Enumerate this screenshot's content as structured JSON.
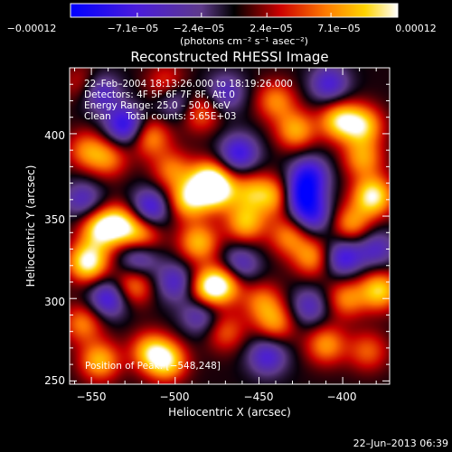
{
  "chart_data": {
    "type": "heatmap",
    "title": "Reconstructed RHESSI Image",
    "xlabel": "Heliocentric X (arcsec)",
    "ylabel": "Heliocentric Y (arcsec)",
    "xlim": [
      -563,
      -372
    ],
    "ylim": [
      248,
      440
    ],
    "x_ticks": [
      -550,
      -500,
      -450,
      -400
    ],
    "y_ticks": [
      250,
      300,
      350,
      400
    ],
    "x_tick_labels": [
      "−550",
      "−500",
      "−450",
      "−400"
    ],
    "y_tick_labels": [
      "250",
      "300",
      "350",
      "400"
    ],
    "colorbar": {
      "range": [
        -0.00012,
        0.00012
      ],
      "colormap": "blue-purple-black-red-yellow-white",
      "ticks": [
        -0.00012,
        -7.1e-05,
        -2.4e-05,
        2.4e-05,
        7.1e-05,
        0.00012
      ],
      "tick_labels": [
        "−0.00012",
        "−7.1e−05",
        "−2.4e−05",
        "2.4e−05",
        "7.1e−05",
        "0.00012"
      ],
      "unit_label": "(photons cm⁻² s⁻¹ asec⁻²)"
    },
    "annotations": [
      "22–Feb–2004 18:13:26.000 to 18:19:26.000",
      "Detectors: 4F 5F 6F 7F 8F, Att 0",
      "Energy Range: 25.0 – 50.0 keV",
      "Clean     Total counts: 5.65E+03"
    ],
    "footer_note": "Position of Peak: [−548,248]",
    "blobs": [
      {
        "x": -552,
        "y": 322,
        "v": 1.0
      },
      {
        "x": -545,
        "y": 342,
        "v": 0.8
      },
      {
        "x": -533,
        "y": 345,
        "v": 0.8
      },
      {
        "x": -525,
        "y": 308,
        "v": 0.6
      },
      {
        "x": -520,
        "y": 338,
        "v": 0.65
      },
      {
        "x": -553,
        "y": 390,
        "v": 0.5
      },
      {
        "x": -540,
        "y": 385,
        "v": 0.5
      },
      {
        "x": -515,
        "y": 398,
        "v": 0.6
      },
      {
        "x": -502,
        "y": 378,
        "v": 0.5
      },
      {
        "x": -485,
        "y": 413,
        "v": 0.5
      },
      {
        "x": -492,
        "y": 360,
        "v": 0.8
      },
      {
        "x": -486,
        "y": 334,
        "v": 0.7
      },
      {
        "x": -475,
        "y": 365,
        "v": 0.75
      },
      {
        "x": -480,
        "y": 372,
        "v": 0.85
      },
      {
        "x": -480,
        "y": 306,
        "v": 0.85
      },
      {
        "x": -470,
        "y": 310,
        "v": 0.7
      },
      {
        "x": -458,
        "y": 346,
        "v": 0.7
      },
      {
        "x": -455,
        "y": 365,
        "v": 0.55
      },
      {
        "x": -440,
        "y": 362,
        "v": 0.65
      },
      {
        "x": -432,
        "y": 338,
        "v": 0.55
      },
      {
        "x": -428,
        "y": 402,
        "v": 0.65
      },
      {
        "x": -440,
        "y": 420,
        "v": 0.55
      },
      {
        "x": -402,
        "y": 408,
        "v": 0.8
      },
      {
        "x": -388,
        "y": 405,
        "v": 0.75
      },
      {
        "x": -388,
        "y": 385,
        "v": 0.6
      },
      {
        "x": -382,
        "y": 362,
        "v": 0.95
      },
      {
        "x": -395,
        "y": 345,
        "v": 0.6
      },
      {
        "x": -418,
        "y": 325,
        "v": 0.6
      },
      {
        "x": -398,
        "y": 300,
        "v": 0.55
      },
      {
        "x": -378,
        "y": 305,
        "v": 0.8
      },
      {
        "x": -410,
        "y": 272,
        "v": 0.6
      },
      {
        "x": -385,
        "y": 268,
        "v": 0.45
      },
      {
        "x": -448,
        "y": 298,
        "v": 0.5
      },
      {
        "x": -440,
        "y": 285,
        "v": 0.55
      },
      {
        "x": -470,
        "y": 280,
        "v": 0.45
      },
      {
        "x": -515,
        "y": 268,
        "v": 0.65
      },
      {
        "x": -505,
        "y": 262,
        "v": 0.8
      },
      {
        "x": -545,
        "y": 262,
        "v": 0.7
      },
      {
        "x": -555,
        "y": 285,
        "v": 0.55
      },
      {
        "x": -505,
        "y": 430,
        "v": 0.45
      },
      {
        "x": -555,
        "y": 430,
        "v": 0.35
      },
      {
        "x": -540,
        "y": 300,
        "v": -0.7
      },
      {
        "x": -522,
        "y": 325,
        "v": -0.6
      },
      {
        "x": -515,
        "y": 355,
        "v": -0.7
      },
      {
        "x": -530,
        "y": 405,
        "v": -0.8
      },
      {
        "x": -545,
        "y": 425,
        "v": -0.6
      },
      {
        "x": -500,
        "y": 420,
        "v": -0.5
      },
      {
        "x": -470,
        "y": 425,
        "v": -0.5
      },
      {
        "x": -462,
        "y": 388,
        "v": -0.7
      },
      {
        "x": -462,
        "y": 320,
        "v": -0.6
      },
      {
        "x": -425,
        "y": 362,
        "v": -0.8
      },
      {
        "x": -420,
        "y": 375,
        "v": -0.7
      },
      {
        "x": -418,
        "y": 350,
        "v": -0.6
      },
      {
        "x": -408,
        "y": 430,
        "v": -0.6
      },
      {
        "x": -400,
        "y": 325,
        "v": -0.7
      },
      {
        "x": -380,
        "y": 330,
        "v": -0.5
      },
      {
        "x": -445,
        "y": 265,
        "v": -0.6
      },
      {
        "x": -420,
        "y": 295,
        "v": -0.5
      },
      {
        "x": -485,
        "y": 290,
        "v": -0.5
      },
      {
        "x": -555,
        "y": 360,
        "v": -0.5
      },
      {
        "x": -500,
        "y": 310,
        "v": -0.55
      }
    ]
  },
  "timestamp": "22–Jun–2013 06:39"
}
